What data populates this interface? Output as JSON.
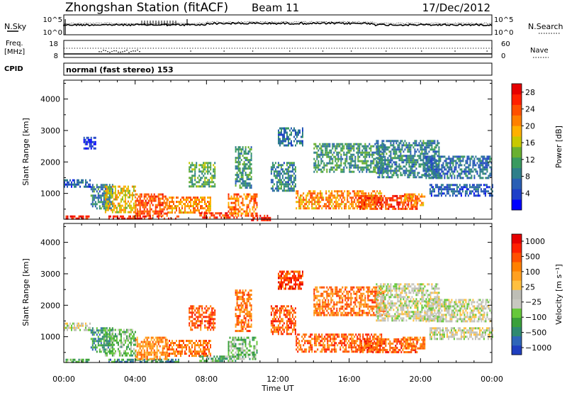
{
  "header": {
    "station": "Zhongshan Station (fitACF)",
    "beam": "Beam 11",
    "date": "17/Dec/2012"
  },
  "status_panels": {
    "nsky": {
      "label": "N.Sky",
      "ticks": [
        "10^5",
        "10^0"
      ]
    },
    "nsearch": {
      "label": "N.Search",
      "ticks": [
        "10^5",
        "10^0"
      ]
    },
    "freq": {
      "label_line1": "Freq.",
      "label_line2": "[MHz]",
      "ticks": [
        "18",
        "8"
      ]
    },
    "nave": {
      "label": "Nave",
      "ticks": [
        "60",
        "0"
      ]
    },
    "cpid": {
      "label": "CPID",
      "value": "normal (fast stereo) 153"
    }
  },
  "chart_data": [
    {
      "type": "heatmap",
      "name": "power-panel",
      "ylabel": "Slant Range [km]",
      "xlabel": "",
      "x_ticks": [
        "00:00",
        "04:00",
        "08:00",
        "12:00",
        "16:00",
        "20:00",
        "00:00"
      ],
      "x_range_hours": [
        0,
        24
      ],
      "ylim": [
        180,
        4600
      ],
      "y_ticks": [
        1000,
        2000,
        3000,
        4000
      ],
      "colorbar": {
        "label": "Power [dB]",
        "ticks": [
          "4",
          "8",
          "12",
          "16",
          "20",
          "24",
          "28"
        ],
        "colors": [
          "#0000ff",
          "#1e3fc8",
          "#2a5fb4",
          "#2f7f8a",
          "#3a9a60",
          "#6ab030",
          "#c8c800",
          "#ffb000",
          "#ff8000",
          "#ff5000",
          "#ff2000",
          "#e60000"
        ]
      },
      "echo_regions": [
        {
          "t0": 0.1,
          "t1": 1.4,
          "r0": 190,
          "r1": 300,
          "level": 0.9
        },
        {
          "t0": 0.0,
          "t1": 1.5,
          "r0": 1200,
          "r1": 1450,
          "level": 0.2
        },
        {
          "t0": 1.5,
          "t1": 2.7,
          "r0": 500,
          "r1": 1300,
          "level": 0.3
        },
        {
          "t0": 1.1,
          "t1": 1.8,
          "r0": 2400,
          "r1": 2800,
          "level": 0.1
        },
        {
          "t0": 2.5,
          "t1": 6.4,
          "r0": 200,
          "r1": 300,
          "level": 0.9
        },
        {
          "t0": 2.3,
          "t1": 4.0,
          "r0": 400,
          "r1": 1250,
          "level": 0.6
        },
        {
          "t0": 4.0,
          "t1": 5.8,
          "r0": 300,
          "r1": 1000,
          "level": 0.8
        },
        {
          "t0": 5.8,
          "t1": 8.2,
          "r0": 400,
          "r1": 900,
          "level": 0.7
        },
        {
          "t0": 7.6,
          "t1": 9.8,
          "r0": 200,
          "r1": 400,
          "level": 0.85
        },
        {
          "t0": 7.0,
          "t1": 8.5,
          "r0": 1200,
          "r1": 2000,
          "level": 0.4
        },
        {
          "t0": 9.2,
          "t1": 10.8,
          "r0": 300,
          "r1": 1000,
          "level": 0.75
        },
        {
          "t0": 9.6,
          "t1": 10.5,
          "r0": 1200,
          "r1": 2500,
          "level": 0.35
        },
        {
          "t0": 10.5,
          "t1": 11.6,
          "r0": 180,
          "r1": 320,
          "level": 0.9
        },
        {
          "t0": 11.6,
          "t1": 13.0,
          "r0": 1100,
          "r1": 2000,
          "level": 0.3
        },
        {
          "t0": 12.0,
          "t1": 13.4,
          "r0": 2500,
          "r1": 3100,
          "level": 0.25
        },
        {
          "t0": 13.0,
          "t1": 17.8,
          "r0": 500,
          "r1": 1100,
          "level": 0.7
        },
        {
          "t0": 16.5,
          "t1": 19.8,
          "r0": 500,
          "r1": 950,
          "level": 0.85
        },
        {
          "t0": 14.0,
          "t1": 18.0,
          "r0": 1700,
          "r1": 2600,
          "level": 0.35
        },
        {
          "t0": 17.5,
          "t1": 21.0,
          "r0": 1500,
          "r1": 2700,
          "level": 0.3
        },
        {
          "t0": 19.0,
          "t1": 20.2,
          "r0": 600,
          "r1": 1000,
          "level": 0.7
        },
        {
          "t0": 20.2,
          "t1": 24.0,
          "r0": 1500,
          "r1": 2200,
          "level": 0.25
        },
        {
          "t0": 20.5,
          "t1": 24.0,
          "r0": 900,
          "r1": 1300,
          "level": 0.2
        }
      ]
    },
    {
      "type": "heatmap",
      "name": "velocity-panel",
      "ylabel": "Slant Range [km]",
      "xlabel": "Time UT",
      "x_ticks": [
        "00:00",
        "04:00",
        "08:00",
        "12:00",
        "16:00",
        "20:00",
        "00:00"
      ],
      "x_range_hours": [
        0,
        24
      ],
      "ylim": [
        180,
        4600
      ],
      "y_ticks": [
        1000,
        2000,
        3000,
        4000
      ],
      "colorbar": {
        "label": "Velocity [m s⁻¹]",
        "ticks": [
          "1000",
          "500",
          "100",
          "25",
          "−25",
          "−100",
          "−500",
          "−1000"
        ],
        "colors": [
          "#1f3fbf",
          "#2f66b8",
          "#2f8a70",
          "#3aa03a",
          "#66c83a",
          "#c8c8c0",
          "#bebeb6",
          "#ffc040",
          "#ffa020",
          "#ff8000",
          "#ff5000",
          "#ff2000",
          "#e60000"
        ]
      },
      "echo_regions": [
        {
          "t0": 0.1,
          "t1": 1.4,
          "r0": 190,
          "r1": 300,
          "level": 0.3
        },
        {
          "t0": 0.0,
          "t1": 1.5,
          "r0": 1200,
          "r1": 1450,
          "level": 0.45
        },
        {
          "t0": 1.5,
          "t1": 2.7,
          "r0": 500,
          "r1": 1300,
          "level": 0.25
        },
        {
          "t0": 2.5,
          "t1": 6.4,
          "r0": 200,
          "r1": 300,
          "level": 0.2
        },
        {
          "t0": 2.3,
          "t1": 4.0,
          "r0": 400,
          "r1": 1250,
          "level": 0.35
        },
        {
          "t0": 4.0,
          "t1": 5.8,
          "r0": 300,
          "r1": 1000,
          "level": 0.7
        },
        {
          "t0": 5.8,
          "t1": 8.2,
          "r0": 400,
          "r1": 900,
          "level": 0.75
        },
        {
          "t0": 7.6,
          "t1": 9.8,
          "r0": 200,
          "r1": 400,
          "level": 0.3
        },
        {
          "t0": 7.0,
          "t1": 8.5,
          "r0": 1200,
          "r1": 2000,
          "level": 0.8
        },
        {
          "t0": 9.2,
          "t1": 10.8,
          "r0": 300,
          "r1": 1000,
          "level": 0.35
        },
        {
          "t0": 9.6,
          "t1": 10.5,
          "r0": 1200,
          "r1": 2500,
          "level": 0.75
        },
        {
          "t0": 11.6,
          "t1": 13.0,
          "r0": 1100,
          "r1": 2000,
          "level": 0.8
        },
        {
          "t0": 12.0,
          "t1": 13.4,
          "r0": 2500,
          "r1": 3100,
          "level": 0.85
        },
        {
          "t0": 13.0,
          "t1": 17.8,
          "r0": 500,
          "r1": 1100,
          "level": 0.78
        },
        {
          "t0": 16.5,
          "t1": 19.8,
          "r0": 500,
          "r1": 950,
          "level": 0.82
        },
        {
          "t0": 14.0,
          "t1": 18.0,
          "r0": 1700,
          "r1": 2600,
          "level": 0.75
        },
        {
          "t0": 17.5,
          "t1": 21.0,
          "r0": 1500,
          "r1": 2700,
          "level": 0.46
        },
        {
          "t0": 19.0,
          "t1": 20.2,
          "r0": 600,
          "r1": 1000,
          "level": 0.72
        },
        {
          "t0": 20.2,
          "t1": 24.0,
          "r0": 1500,
          "r1": 2200,
          "level": 0.46
        },
        {
          "t0": 20.5,
          "t1": 24.0,
          "r0": 900,
          "r1": 1300,
          "level": 0.47
        }
      ]
    }
  ]
}
